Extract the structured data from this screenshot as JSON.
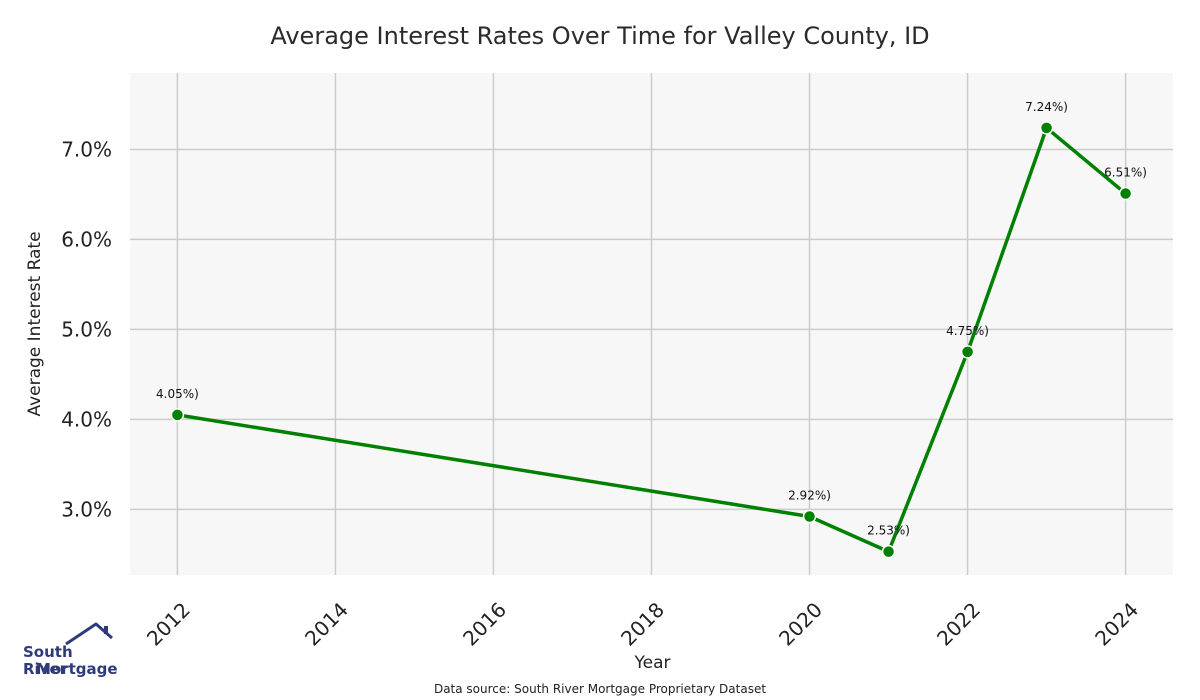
{
  "logo": {
    "line1": "South River",
    "line2": "Mortgage",
    "color": "#2f3a7a"
  },
  "source_note": "Data source: South River Mortgage Proprietary Dataset",
  "chart_data": {
    "type": "line",
    "title": "Average Interest Rates Over Time for Valley County, ID",
    "xlabel": "Year",
    "ylabel": "Average Interest Rate",
    "x": [
      2012,
      2020,
      2021,
      2022,
      2023,
      2024
    ],
    "series": [
      {
        "values": [
          4.05,
          2.92,
          2.53,
          4.75,
          7.24,
          6.51
        ],
        "labels": [
          "4.05%)",
          "2.92%)",
          "2.53%)",
          "4.75%)",
          "7.24%)",
          "6.51%)"
        ],
        "color": "#008000"
      }
    ],
    "xticks": [
      2012,
      2014,
      2016,
      2018,
      2020,
      2022,
      2024
    ],
    "xtick_labels": [
      "2012",
      "2014",
      "2016",
      "2018",
      "2020",
      "2022",
      "2024"
    ],
    "yticks": [
      3.0,
      4.0,
      5.0,
      6.0,
      7.0
    ],
    "ytick_labels": [
      "3.0%",
      "4.0%",
      "5.0%",
      "6.0%",
      "7.0%"
    ],
    "xlim": [
      2011.4,
      2024.6
    ],
    "ylim": [
      2.27,
      7.85
    ],
    "grid": true,
    "plot_background": "#f7f7f7",
    "grid_color": "#cccccc"
  }
}
